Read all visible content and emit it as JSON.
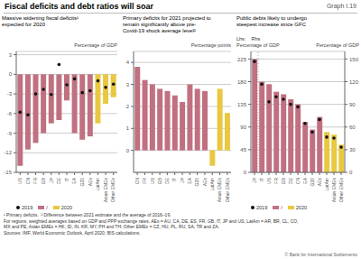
{
  "title": "Fiscal deficits and debt ratios will soar",
  "annotations": [
    "Graph I.19",
    "¹ Primary deficits.  ² Difference between 2021 estimate and the average of 2016–19.",
    "For regions, weighted averages based on GDP and PPP exchange rates. AEs = AU, CA, DE, ES, FR, GB, IT, JP and US; LatAm = AR, BR, CL, CO,\nMX and PE; Asian EMEs = HK, ID, IN, KR, MY, PH and TH; Other EMEs = CZ, HU, PL, RU, SA, TR and ZA.",
    "Sources: IMF, World Economic Outlook, April 2020; BIS calculations.",
    "© Bank for International Settlements"
  ],
  "chart_data": [
    {
      "type": "bar",
      "subtitle": "Massive widening fiscal deficits¹\nexpected for 2020",
      "ylabel": "Percentage of GDP",
      "categories": [
        "US",
        "CN",
        "FR",
        "GB",
        "JP",
        "DE",
        "IT",
        "EA",
        "G20",
        "AEs",
        "LatAm",
        "Asian\nEMEs",
        "Other\nEMEs"
      ],
      "series": [
        {
          "name": "2019",
          "type": "scatter",
          "color": "#111111",
          "values": [
            -5.8,
            -6.2,
            -3.0,
            -2.3,
            -3.1,
            1.5,
            -1.6,
            -0.7,
            -2.8,
            -2.5,
            -1.0,
            -2.0,
            -1.5
          ]
        },
        {
          "name": "/",
          "type": "bar",
          "color": "#c07080",
          "values": [
            -14.0,
            -11.5,
            -10.5,
            -9.0,
            -7.5,
            -7.0,
            -4.0,
            -9.0,
            -10.0,
            -9.5,
            null,
            null,
            null
          ]
        },
        {
          "name": "2020",
          "type": "bar",
          "color": "#e8c840",
          "values": [
            null,
            null,
            null,
            null,
            null,
            null,
            null,
            null,
            null,
            null,
            -7.5,
            -4.5,
            -3.5
          ]
        }
      ],
      "ylim": [
        -15,
        3.5
      ],
      "yticks": [
        3,
        0,
        -3,
        -6,
        -9,
        -12,
        -15
      ],
      "grid": true,
      "legend": "lower left"
    },
    {
      "type": "bar",
      "subtitle": "Primary deficits for 2021 projected to\nremain significantly above pre-\nCovid-19 shock average level²",
      "ylabel": "Percentage points",
      "categories": [
        "CN",
        "FR",
        "US",
        "GB",
        "DE",
        "IT",
        "JP",
        "EA",
        "G20",
        "AEs",
        "LatAm",
        "Asian\nEMEs",
        "Other\nEMEs"
      ],
      "values": [
        3.8,
        3.2,
        3.0,
        2.8,
        2.7,
        2.5,
        2.2,
        3.0,
        2.8,
        2.7,
        -0.7,
        2.8,
        1.7
      ],
      "colors": [
        "#c07080",
        "#c07080",
        "#c07080",
        "#c07080",
        "#c07080",
        "#c07080",
        "#c07080",
        "#c07080",
        "#c07080",
        "#c07080",
        "#e8c840",
        "#e8c840",
        "#e8c840"
      ],
      "ylim": [
        -1,
        4.5
      ],
      "yticks": [
        0,
        1,
        2,
        3,
        4
      ],
      "grid": true
    },
    {
      "type": "bar",
      "subtitle": "Public debts likely to undergo\nsteepest increase since GFC",
      "ylabel": "Percentage of GDP",
      "y2label": "Percentage of GDP",
      "annotations": [
        "Lhs:",
        "Rhs"
      ],
      "categories": [
        "JP",
        "IT",
        "US",
        "FR",
        "GB",
        "DE",
        "CN",
        "EA",
        "G20",
        "AEs",
        "LatAm",
        "Asian\nEMEs",
        "Other\nEMEs"
      ],
      "series": [
        {
          "name": "2019",
          "type": "scatter",
          "color": "#111111",
          "values": [
            220,
            175,
            140,
            150,
            145,
            135,
            130,
            97,
            80,
            105,
            70,
            68,
            50
          ]
        },
        {
          "name": "/",
          "type": "bar",
          "color": "#c07080",
          "values": [
            225,
            180,
            175,
            160,
            155,
            145,
            135,
            100,
            85,
            110,
            null,
            null,
            null
          ]
        },
        {
          "name": "2020",
          "type": "bar",
          "color": "#e8c840",
          "values": [
            null,
            null,
            null,
            null,
            null,
            null,
            null,
            null,
            null,
            null,
            80,
            75,
            55
          ]
        }
      ],
      "ylim": [
        0,
        240
      ],
      "yticks": [
        0,
        45,
        90,
        135,
        180,
        225
      ],
      "y2lim": [
        0,
        160
      ],
      "y2ticks": [
        0,
        30,
        60,
        90,
        120,
        150
      ],
      "grid": true,
      "legend": "lower left"
    }
  ]
}
